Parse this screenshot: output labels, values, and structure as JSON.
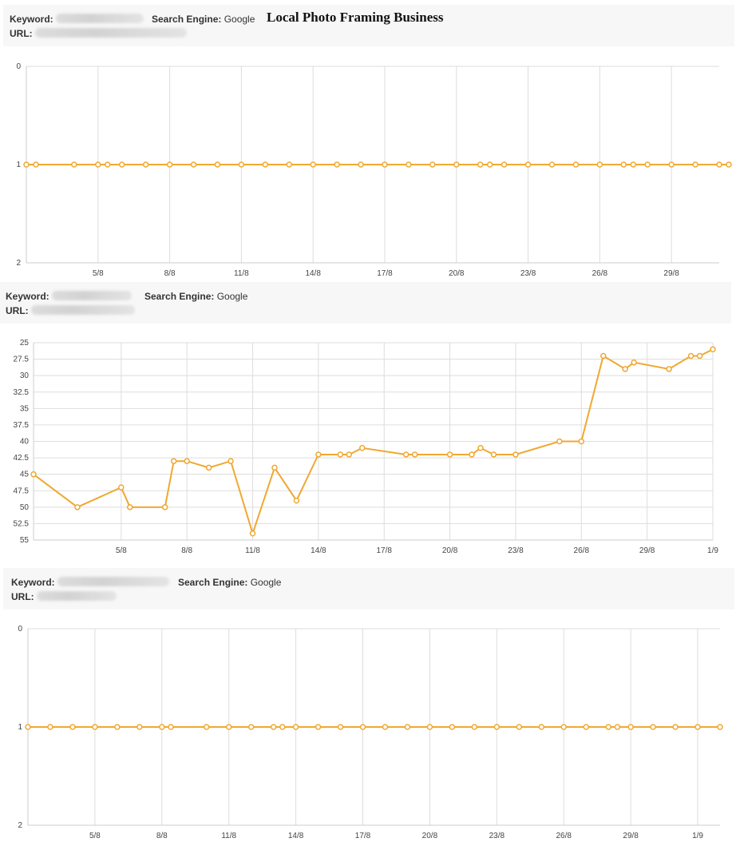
{
  "page_title": "Local Photo Framing Business",
  "labels": {
    "keyword": "Keyword:",
    "url": "URL:",
    "engine": "Search Engine:"
  },
  "charts": [
    {
      "engine": "Google"
    },
    {
      "engine": "Google"
    },
    {
      "engine": "Google"
    }
  ],
  "colors": {
    "line": "#f0a830",
    "grid": "#dddddd",
    "axis": "#cccccc"
  },
  "chart_data": [
    {
      "type": "line",
      "x_tick_labels": [
        "5/8",
        "8/8",
        "11/8",
        "14/8",
        "17/8",
        "20/8",
        "23/8",
        "26/8",
        "29/8"
      ],
      "y_tick_labels": [
        "0",
        "1",
        "2"
      ],
      "ylim": [
        0,
        2
      ],
      "y_inverted": true,
      "x_date_range": [
        "2/8",
        "31/8"
      ],
      "series": [
        {
          "x": [
            "2/8",
            "2/8",
            "4/8",
            "5/8",
            "5/8",
            "6/8",
            "7/8",
            "8/8",
            "9/8",
            "10/8",
            "11/8",
            "12/8",
            "13/8",
            "14/8",
            "15/8",
            "16/8",
            "17/8",
            "18/8",
            "19/8",
            "20/8",
            "21/8",
            "21/8",
            "22/8",
            "23/8",
            "24/8",
            "25/8",
            "26/8",
            "27/8",
            "27/8",
            "28/8",
            "29/8",
            "30/8",
            "31/8",
            "31/8"
          ],
          "y": [
            1,
            1,
            1,
            1,
            1,
            1,
            1,
            1,
            1,
            1,
            1,
            1,
            1,
            1,
            1,
            1,
            1,
            1,
            1,
            1,
            1,
            1,
            1,
            1,
            1,
            1,
            1,
            1,
            1,
            1,
            1,
            1,
            1,
            1
          ]
        }
      ]
    },
    {
      "type": "line",
      "x_tick_labels": [
        "5/8",
        "8/8",
        "11/8",
        "14/8",
        "17/8",
        "20/8",
        "23/8",
        "26/8",
        "29/8",
        "1/9"
      ],
      "y_tick_labels": [
        "25",
        "27.5",
        "30",
        "32.5",
        "35",
        "37.5",
        "40",
        "42.5",
        "45",
        "47.5",
        "50",
        "52.5",
        "55"
      ],
      "ylim": [
        25,
        55
      ],
      "y_inverted": true,
      "x_date_range": [
        "1/8",
        "1/9"
      ],
      "series": [
        {
          "x": [
            "1/8",
            "3/8",
            "5/8",
            "5/8",
            "7/8",
            "7/8",
            "8/8",
            "9/8",
            "10/8",
            "11/8",
            "12/8",
            "13/8",
            "14/8",
            "15/8",
            "15/8",
            "16/8",
            "18/8",
            "18/8",
            "20/8",
            "21/8",
            "21/8",
            "22/8",
            "23/8",
            "25/8",
            "26/8",
            "27/8",
            "28/8",
            "28/8",
            "30/8",
            "31/8",
            "31/8",
            "1/9"
          ],
          "y": [
            45,
            50,
            47,
            50,
            50,
            43,
            43,
            44,
            43,
            54,
            44,
            49,
            42,
            42,
            42,
            41,
            42,
            42,
            42,
            42,
            41,
            42,
            42,
            40,
            40,
            27,
            29,
            28,
            29,
            27,
            27,
            26
          ]
        }
      ]
    },
    {
      "type": "line",
      "x_tick_labels": [
        "5/8",
        "8/8",
        "11/8",
        "14/8",
        "17/8",
        "20/8",
        "23/8",
        "26/8",
        "29/8",
        "1/9"
      ],
      "y_tick_labels": [
        "0",
        "1",
        "2"
      ],
      "ylim": [
        0,
        2
      ],
      "y_inverted": true,
      "x_date_range": [
        "2/8",
        "2/9"
      ],
      "series": [
        {
          "x": [
            "2/8",
            "3/8",
            "4/8",
            "5/8",
            "6/8",
            "7/8",
            "8/8",
            "8/8",
            "10/8",
            "11/8",
            "12/8",
            "13/8",
            "13/8",
            "14/8",
            "15/8",
            "16/8",
            "17/8",
            "18/8",
            "19/8",
            "20/8",
            "21/8",
            "22/8",
            "23/8",
            "24/8",
            "25/8",
            "26/8",
            "27/8",
            "28/8",
            "28/8",
            "29/8",
            "30/8",
            "31/8",
            "1/9",
            "2/9"
          ],
          "y": [
            1,
            1,
            1,
            1,
            1,
            1,
            1,
            1,
            1,
            1,
            1,
            1,
            1,
            1,
            1,
            1,
            1,
            1,
            1,
            1,
            1,
            1,
            1,
            1,
            1,
            1,
            1,
            1,
            1,
            1,
            1,
            1,
            1,
            1
          ]
        }
      ]
    }
  ]
}
